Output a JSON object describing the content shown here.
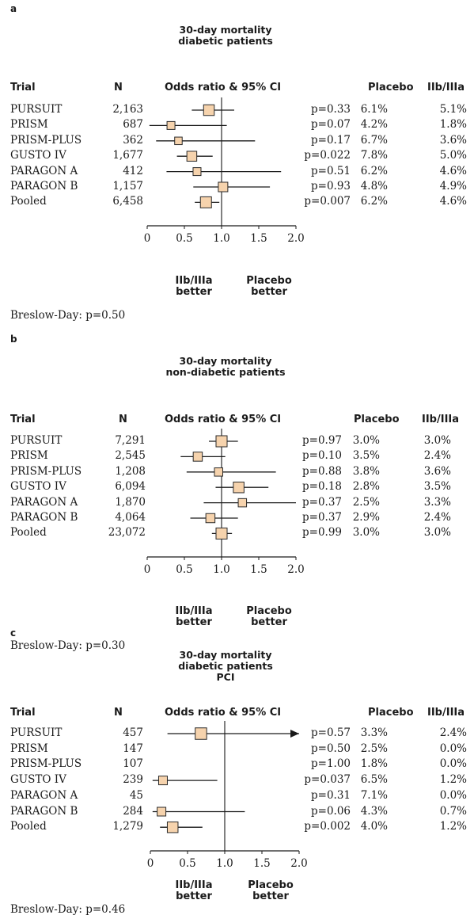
{
  "header_labels": {
    "trial": "Trial",
    "n": "N",
    "or": "Odds ratio & 95% CI",
    "placebo": "Placebo",
    "drug": "IIb/IIIa"
  },
  "better_labels": {
    "left_1": "IIb/IIIa",
    "left_2": "better",
    "right_1": "Placebo",
    "right_2": "better"
  },
  "colors": {
    "marker_fill": "#f6d3ad",
    "marker_stroke": "#2a2a2a",
    "line": "#1a1a1a"
  },
  "chart_data": [
    {
      "type": "forest",
      "letter": "a",
      "title_lines": [
        "30-day mortality",
        "diabetic patients"
      ],
      "xlim": [
        0,
        2.0
      ],
      "ticks": [
        "0",
        "0.5",
        "1.0",
        "1.5",
        "2.0"
      ],
      "rows": [
        {
          "trial": "PURSUIT",
          "n": "2,163",
          "or": 0.83,
          "lo": 0.6,
          "hi": 1.17,
          "p": "p=0.33",
          "placebo": "6.1%",
          "drug": "5.1%",
          "weight": 0.75
        },
        {
          "trial": "PRISM",
          "n": "687",
          "or": 0.32,
          "lo": 0.03,
          "hi": 1.07,
          "p": "p=0.07",
          "placebo": "4.2%",
          "drug": "1.8%",
          "weight": 0.4
        },
        {
          "trial": "PRISM-PLUS",
          "n": "362",
          "or": 0.42,
          "lo": 0.12,
          "hi": 1.45,
          "p": "p=0.17",
          "placebo": "6.7%",
          "drug": "3.6%",
          "weight": 0.35
        },
        {
          "trial": "GUSTO IV",
          "n": "1,677",
          "or": 0.6,
          "lo": 0.4,
          "hi": 0.88,
          "p": "p=0.022",
          "placebo": "7.8%",
          "drug": "5.0%",
          "weight": 0.65
        },
        {
          "trial": "PARAGON A",
          "n": "412",
          "or": 0.67,
          "lo": 0.26,
          "hi": 1.8,
          "p": "p=0.51",
          "placebo": "6.2%",
          "drug": "4.6%",
          "weight": 0.4
        },
        {
          "trial": "PARAGON B",
          "n": "1,157",
          "or": 1.02,
          "lo": 0.62,
          "hi": 1.65,
          "p": "p=0.93",
          "placebo": "4.8%",
          "drug": "4.9%",
          "weight": 0.6
        },
        {
          "trial": "Pooled",
          "n": "6,458",
          "or": 0.79,
          "lo": 0.64,
          "hi": 0.97,
          "p": "p=0.007",
          "placebo": "6.2%",
          "drug": "4.6%",
          "weight": 0.8
        }
      ],
      "footer": "Breslow-Day: p=0.50"
    },
    {
      "type": "forest",
      "letter": "b",
      "title_lines": [
        "30-day mortality",
        "non-diabetic patients"
      ],
      "xlim": [
        0,
        2.0
      ],
      "ticks": [
        "0",
        "0.5",
        "1.0",
        "1.5",
        "2.0"
      ],
      "rows": [
        {
          "trial": "PURSUIT",
          "n": "7,291",
          "or": 1.0,
          "lo": 0.83,
          "hi": 1.22,
          "p": "p=0.97",
          "placebo": "3.0%",
          "drug": "3.0%",
          "weight": 0.8
        },
        {
          "trial": "PRISM",
          "n": "2,545",
          "or": 0.68,
          "lo": 0.45,
          "hi": 1.05,
          "p": "p=0.10",
          "placebo": "3.5%",
          "drug": "2.4%",
          "weight": 0.55
        },
        {
          "trial": "PRISM-PLUS",
          "n": "1,208",
          "or": 0.96,
          "lo": 0.53,
          "hi": 1.73,
          "p": "p=0.88",
          "placebo": "3.8%",
          "drug": "3.6%",
          "weight": 0.45
        },
        {
          "trial": "GUSTO IV",
          "n": "6,094",
          "or": 1.23,
          "lo": 0.92,
          "hi": 1.63,
          "p": "p=0.18",
          "placebo": "2.8%",
          "drug": "3.5%",
          "weight": 0.75
        },
        {
          "trial": "PARAGON A",
          "n": "1,870",
          "or": 1.28,
          "lo": 0.76,
          "hi": 2.0,
          "p": "p=0.37",
          "placebo": "2.5%",
          "drug": "3.3%",
          "weight": 0.45
        },
        {
          "trial": "PARAGON B",
          "n": "4,064",
          "or": 0.85,
          "lo": 0.58,
          "hi": 1.22,
          "p": "p=0.37",
          "placebo": "2.9%",
          "drug": "2.4%",
          "weight": 0.55
        },
        {
          "trial": "Pooled",
          "n": "23,072",
          "or": 1.0,
          "lo": 0.87,
          "hi": 1.14,
          "p": "p=0.99",
          "placebo": "3.0%",
          "drug": "3.0%",
          "weight": 0.8
        }
      ],
      "footer": "Breslow-Day: p=0.30"
    },
    {
      "type": "forest",
      "letter": "c",
      "title_lines": [
        "30-day mortality",
        "diabetic patients",
        "PCI"
      ],
      "xlim": [
        0,
        2.0
      ],
      "ticks": [
        "0",
        "0.5",
        "1.0",
        "1.5",
        "2.0"
      ],
      "rows": [
        {
          "trial": "PURSUIT",
          "n": "457",
          "or": 0.68,
          "lo": 0.23,
          "hi": 2.0,
          "arrow": true,
          "p": "p=0.57",
          "placebo": "3.3%",
          "drug": "2.4%",
          "weight": 0.85
        },
        {
          "trial": "PRISM",
          "n": "147",
          "or": null,
          "lo": null,
          "hi": null,
          "p": "p=0.50",
          "placebo": "2.5%",
          "drug": "0.0%",
          "weight": 0
        },
        {
          "trial": "PRISM-PLUS",
          "n": "107",
          "or": null,
          "lo": null,
          "hi": null,
          "p": "p=1.00",
          "placebo": "1.8%",
          "drug": "0.0%",
          "weight": 0
        },
        {
          "trial": "GUSTO IV",
          "n": "239",
          "or": 0.17,
          "lo": 0.03,
          "hi": 0.9,
          "p": "p=0.037",
          "placebo": "6.5%",
          "drug": "1.2%",
          "weight": 0.5
        },
        {
          "trial": "PARAGON A",
          "n": "45",
          "or": null,
          "lo": null,
          "hi": null,
          "p": "p=0.31",
          "placebo": "7.1%",
          "drug": "0.0%",
          "weight": 0
        },
        {
          "trial": "PARAGON B",
          "n": "284",
          "or": 0.15,
          "lo": 0.03,
          "hi": 1.27,
          "p": "p=0.06",
          "placebo": "4.3%",
          "drug": "0.7%",
          "weight": 0.5
        },
        {
          "trial": "Pooled",
          "n": "1,279",
          "or": 0.3,
          "lo": 0.13,
          "hi": 0.7,
          "p": "p=0.002",
          "placebo": "4.0%",
          "drug": "1.2%",
          "weight": 0.75
        }
      ],
      "footer": "Breslow-Day: p=0.46"
    }
  ]
}
